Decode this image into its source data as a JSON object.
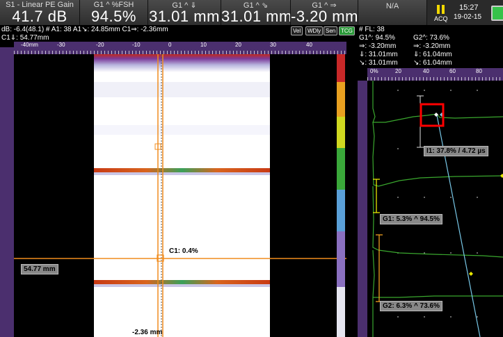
{
  "header": {
    "cells": [
      {
        "label": "S1 - Linear PE Gain",
        "value": "41.7 dB"
      },
      {
        "label": "G1 ^ %FSH",
        "value": "94.5%"
      },
      {
        "label": "G1 ^ ⇓",
        "value": "31.01 mm"
      },
      {
        "label": "G1 ^ ⇘",
        "value": "31.01 mm"
      },
      {
        "label": "G1 ^ ⇒",
        "value": "-3.20 mm"
      },
      {
        "label": "N/A",
        "value": ""
      }
    ],
    "mode": "ACQ",
    "time": "15:27",
    "date": "19-02-15"
  },
  "info_left": {
    "line1": "dB: -6.4(48.1)   # A1: 38  A1↘: 24.85mm  C1⇒: -2.36mm",
    "line2": "C1⇓: 54.77mm"
  },
  "toggles": [
    "Vel",
    "WDly",
    "Sen",
    "TCG"
  ],
  "info_right": {
    "row1": [
      "# FL: 38",
      ""
    ],
    "row2": [
      "G1^: 94.5%",
      "G2^: 73.6%"
    ],
    "row3": [
      "⇒: -3.20mm",
      "⇒: -3.20mm"
    ],
    "row4": [
      "⇓: 31.01mm",
      "⇓: 61.04mm"
    ],
    "row5": [
      "↘: 31.01mm",
      "↘: 61.04mm"
    ]
  },
  "scan_ruler_ticks": [
    "-40mm",
    "-30",
    "-20",
    "-10",
    "0",
    "10",
    "20",
    "30",
    "40"
  ],
  "ascan_ruler_ticks": [
    "0%",
    "20",
    "40",
    "60",
    "80"
  ],
  "cursor_labels": {
    "c1": "C1: 0.4%",
    "depth": "54.77 mm",
    "index": "-2.36 mm"
  },
  "ascan_labels": {
    "i1": "I1: 37.8% / 4.72 µs",
    "g1": "G1: 5.3% ^ 94.5%",
    "g2": "G2: 6.3% ^ 73.6%"
  },
  "colors": {
    "cursor": "#f08c1e",
    "gate_g1": "#e8e800",
    "gate_i": "#e0e0e0",
    "signal": "#3aa82e",
    "highlight": "#ff0000",
    "ruler_bg": "#4b2f6e"
  }
}
